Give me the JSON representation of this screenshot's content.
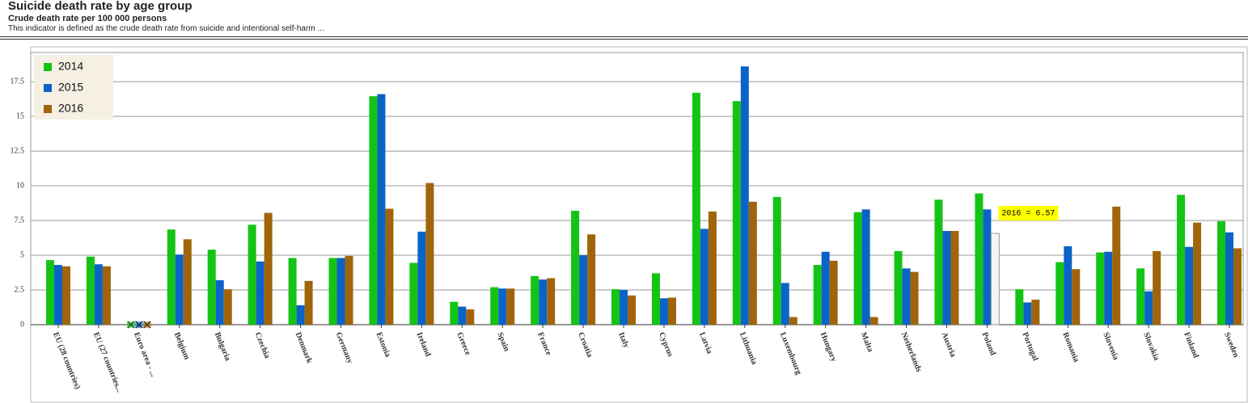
{
  "chart_data": {
    "type": "bar",
    "title": "Suicide death rate by age group",
    "subtitle": "Crude death rate per 100 000 persons",
    "description": "This indicator is defined as the crude death rate from suicide and intentional self-harm ...",
    "categories": [
      "EU (28 countries)",
      "EU (27 countries...",
      "Euro area - ...",
      "Belgium",
      "Bulgaria",
      "Czechia",
      "Denmark",
      "Germany",
      "Estonia",
      "Ireland",
      "Greece",
      "Spain",
      "France",
      "Croatia",
      "Italy",
      "Cyprus",
      "Latvia",
      "Lithuania",
      "Luxembourg",
      "Hungary",
      "Malta",
      "Netherlands",
      "Austria",
      "Poland",
      "Portugal",
      "Romania",
      "Slovenia",
      "Slovakia",
      "Finland",
      "Sweden"
    ],
    "series": [
      {
        "name": "2014",
        "color": "#14c414",
        "values": [
          4.65,
          4.9,
          null,
          6.85,
          5.4,
          7.2,
          4.8,
          4.8,
          16.45,
          4.45,
          1.65,
          2.7,
          3.5,
          8.2,
          2.55,
          3.7,
          16.7,
          16.1,
          9.2,
          4.3,
          8.1,
          5.3,
          9.0,
          9.45,
          2.55,
          4.5,
          5.2,
          4.05,
          9.35,
          7.45
        ]
      },
      {
        "name": "2015",
        "color": "#0a64c8",
        "values": [
          4.3,
          4.35,
          null,
          5.05,
          3.2,
          4.55,
          1.4,
          4.8,
          16.6,
          6.7,
          1.3,
          2.6,
          3.25,
          5.0,
          2.5,
          1.9,
          6.9,
          18.6,
          3.0,
          5.25,
          8.3,
          4.05,
          6.75,
          8.3,
          1.6,
          5.65,
          5.25,
          2.4,
          5.6,
          6.65
        ]
      },
      {
        "name": "2016",
        "color": "#a0650a",
        "values": [
          4.2,
          4.2,
          null,
          6.15,
          2.55,
          8.05,
          3.15,
          4.95,
          8.35,
          10.2,
          1.1,
          2.6,
          3.35,
          6.5,
          2.1,
          1.95,
          8.15,
          8.85,
          0.55,
          4.6,
          0.55,
          3.8,
          6.75,
          6.57,
          1.8,
          4.0,
          8.5,
          5.3,
          7.35,
          5.5
        ]
      }
    ],
    "tooltip": "2016 = 6.57",
    "ylim": [
      0,
      19.6
    ],
    "yticks": [
      0,
      2.5,
      5,
      7.5,
      10,
      12.5,
      15,
      17.5
    ],
    "grid": true,
    "legend": "top-left"
  }
}
